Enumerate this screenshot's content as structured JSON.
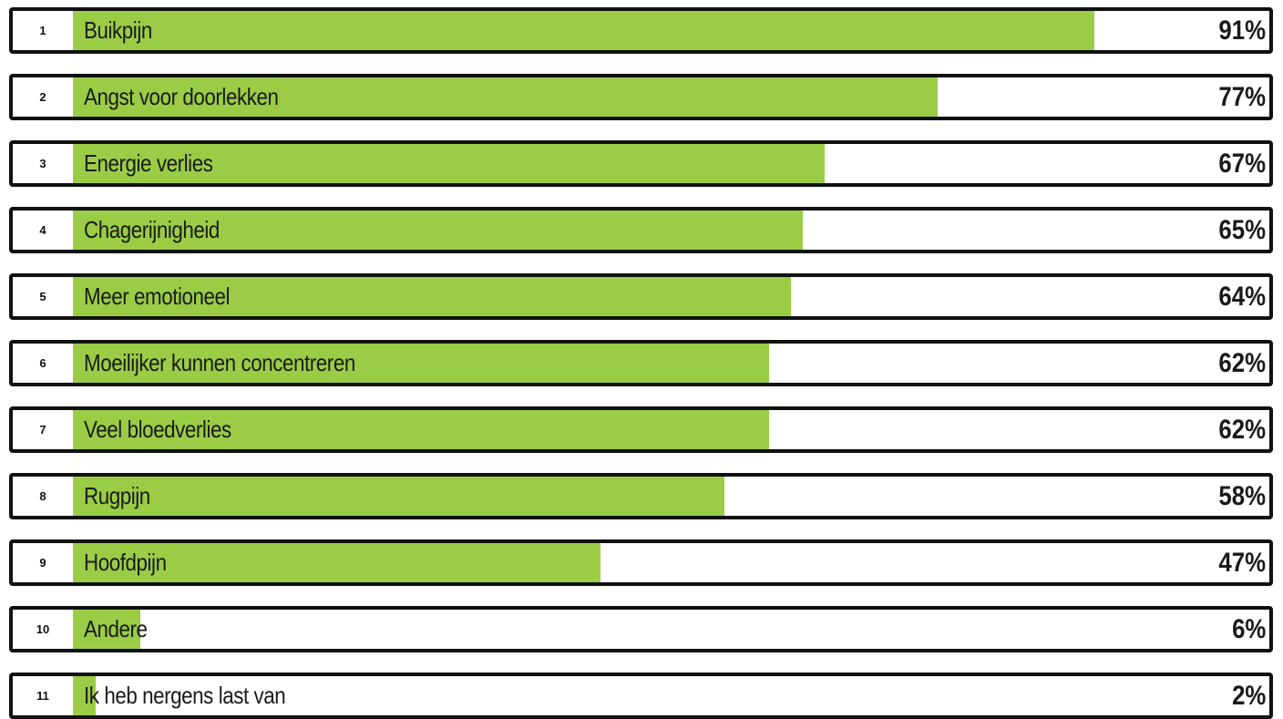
{
  "chart_data": {
    "type": "bar",
    "orientation": "horizontal",
    "title": "",
    "xlabel": "",
    "ylabel": "",
    "xlim": [
      0,
      100
    ],
    "grid": false,
    "legend": "none",
    "colors": {
      "bar": "#9acd45",
      "border": "#111111",
      "background": "#ffffff",
      "text": "#1a1a1a"
    },
    "rows": [
      {
        "rank": "1",
        "label": "Buikpijn",
        "value": 91,
        "value_label": "91%"
      },
      {
        "rank": "2",
        "label": "Angst voor doorlekken",
        "value": 77,
        "value_label": "77%"
      },
      {
        "rank": "3",
        "label": "Energie verlies",
        "value": 67,
        "value_label": "67%"
      },
      {
        "rank": "4",
        "label": "Chagerijnigheid",
        "value": 65,
        "value_label": "65%"
      },
      {
        "rank": "5",
        "label": "Meer emotioneel",
        "value": 64,
        "value_label": "64%"
      },
      {
        "rank": "6",
        "label": "Moeilijker kunnen concentreren",
        "value": 62,
        "value_label": "62%"
      },
      {
        "rank": "7",
        "label": "Veel bloedverlies",
        "value": 62,
        "value_label": "62%"
      },
      {
        "rank": "8",
        "label": "Rugpijn",
        "value": 58,
        "value_label": "58%"
      },
      {
        "rank": "9",
        "label": "Hoofdpijn",
        "value": 47,
        "value_label": "47%"
      },
      {
        "rank": "10",
        "label": "Andere",
        "value": 6,
        "value_label": "6%"
      },
      {
        "rank": "11",
        "label": "Ik heb nergens last van",
        "value": 2,
        "value_label": "2%"
      }
    ]
  }
}
